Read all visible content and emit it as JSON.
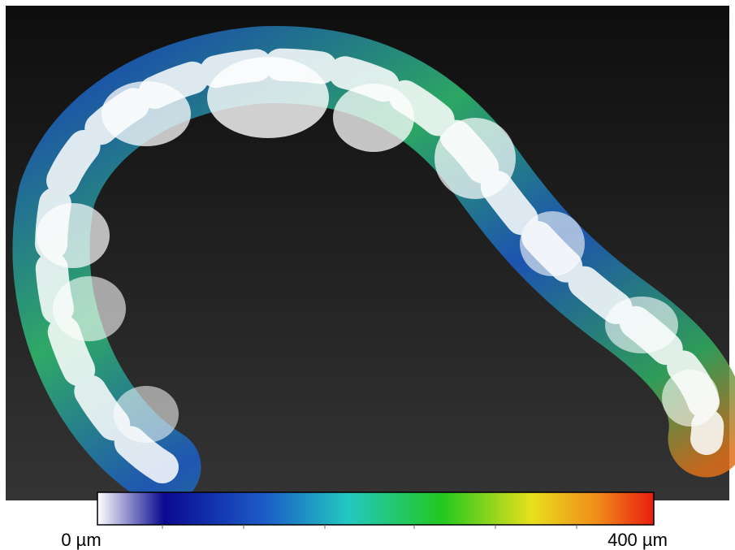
{
  "colorbar": {
    "min_label": "0 µm",
    "max_label": "400 µm"
  }
}
